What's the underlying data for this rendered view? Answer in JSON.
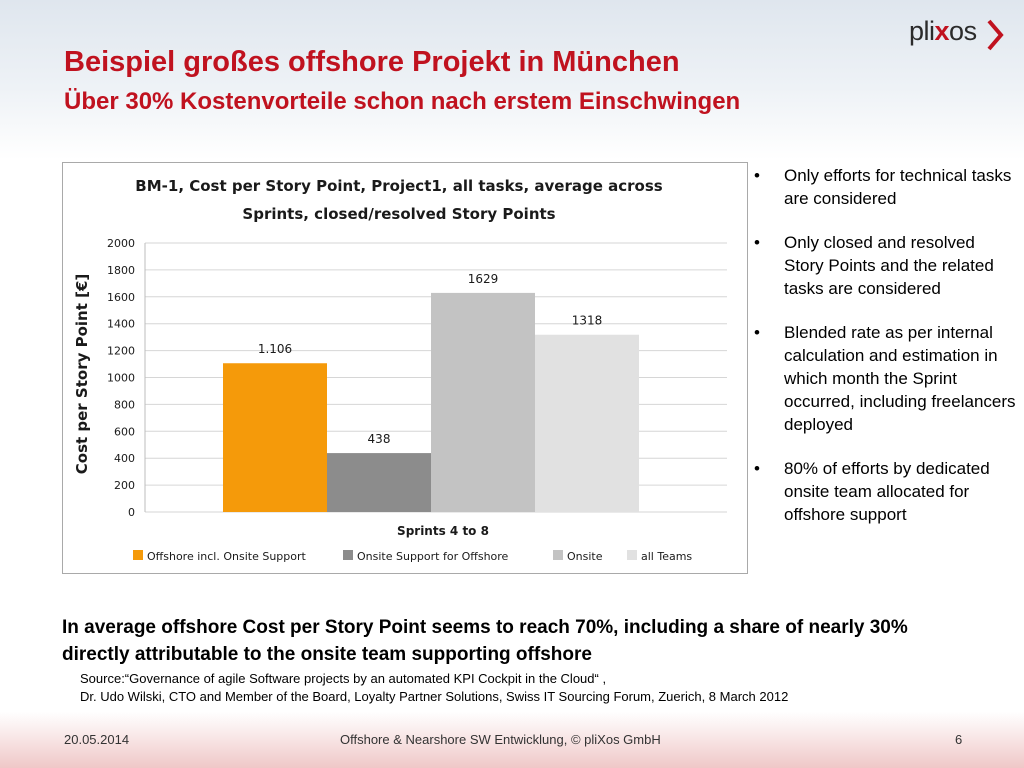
{
  "slide": {
    "title": "Beispiel großes offshore Projekt in München",
    "subtitle": "Über 30% Kostenvorteile schon nach erstem Einschwingen"
  },
  "logo": {
    "text_before": "pli",
    "text_x": "x",
    "text_after": "os",
    "accent_color": "#c0121f"
  },
  "bullets": {
    "items": [
      "Only efforts for technical tasks are considered",
      "Only closed and resolved Story Points and the related tasks are considered",
      "Blended rate as per internal calculation and estimation in which month the Sprint occurred, including freelancers deployed",
      "80% of efforts by dedicated onsite team allocated for offshore support"
    ]
  },
  "summary": {
    "text": "In average offshore Cost per Story Point seems to reach 70%, including a share of nearly 30% directly attributable to the onsite team supporting offshore"
  },
  "source": {
    "line1": "Source:“Governance of agile Software projects by an automated KPI Cockpit in the Cloud“ ,",
    "line2": "Dr. Udo Wilski, CTO and Member of the Board, Loyalty Partner Solutions, Swiss IT Sourcing Forum, Zuerich, 8 March 2012"
  },
  "footer": {
    "date": "20.05.2014",
    "center": "Offshore & Nearshore SW Entwicklung, © pliXos GmbH",
    "page": "6"
  },
  "chart_data": {
    "type": "bar",
    "title_line1": "BM-1, Cost per Story Point, Project1, all tasks, average across",
    "title_line2": "Sprints, closed/resolved Story Points",
    "xlabel": "Sprints 4 to 8",
    "ylabel": "Cost per Story Point [€]",
    "ylim": [
      0,
      2000
    ],
    "yticks": [
      "0",
      "200",
      "400",
      "600",
      "800",
      "1000",
      "1200",
      "1400",
      "1600",
      "1800",
      "2000"
    ],
    "grid": true,
    "legend_position": "bottom",
    "categories": [
      "Sprints 4 to 8"
    ],
    "series": [
      {
        "name": "Offshore incl. Onsite Support",
        "values": [
          1106
        ],
        "label": "1.106",
        "color": "#f59a0a"
      },
      {
        "name": "Onsite Support for Offshore",
        "values": [
          438
        ],
        "label": "438",
        "color": "#8c8c8c"
      },
      {
        "name": "Onsite",
        "values": [
          1629
        ],
        "label": "1629",
        "color": "#c3c3c3"
      },
      {
        "name": "all Teams",
        "values": [
          1318
        ],
        "label": "1318",
        "color": "#e1e1e1"
      }
    ]
  }
}
